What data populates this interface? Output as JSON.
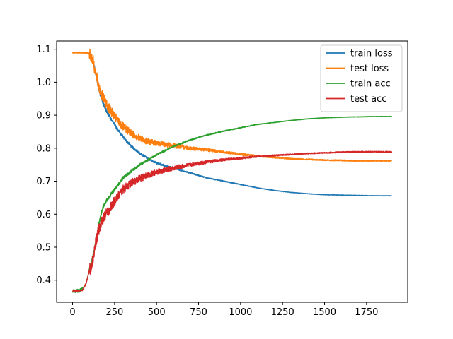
{
  "chart_data": {
    "type": "line",
    "title": "",
    "xlabel": "",
    "ylabel": "",
    "xlim": [
      -95,
      1995
    ],
    "ylim": [
      0.333,
      1.125
    ],
    "x_ticks": [
      0,
      250,
      500,
      750,
      1000,
      1250,
      1500,
      1750
    ],
    "x_tick_labels": [
      "0",
      "250",
      "500",
      "750",
      "1000",
      "1250",
      "1500",
      "1750"
    ],
    "y_ticks": [
      0.4,
      0.5,
      0.6,
      0.7,
      0.8,
      0.9,
      1.0,
      1.1
    ],
    "y_tick_labels": [
      "0.4",
      "0.5",
      "0.6",
      "0.7",
      "0.8",
      "0.9",
      "1.0",
      "1.1"
    ],
    "grid": false,
    "legend": {
      "position": "top-right"
    },
    "noise": [
      0.004,
      0.012,
      0.004,
      0.012
    ],
    "series": [
      {
        "name": "train loss",
        "color": "#1f77b4",
        "x": [
          0,
          50,
          100,
          120,
          140,
          160,
          180,
          200,
          250,
          300,
          350,
          400,
          450,
          500,
          600,
          700,
          800,
          900,
          1000,
          1100,
          1200,
          1300,
          1400,
          1500,
          1600,
          1700,
          1800,
          1900
        ],
        "y": [
          1.09,
          1.09,
          1.088,
          1.07,
          1.02,
          0.97,
          0.94,
          0.915,
          0.87,
          0.835,
          0.805,
          0.785,
          0.768,
          0.755,
          0.74,
          0.725,
          0.71,
          0.7,
          0.69,
          0.68,
          0.672,
          0.666,
          0.662,
          0.659,
          0.658,
          0.657,
          0.656,
          0.656
        ]
      },
      {
        "name": "test loss",
        "color": "#ff7f0e",
        "x": [
          0,
          50,
          100,
          120,
          140,
          160,
          180,
          200,
          250,
          300,
          350,
          400,
          450,
          500,
          600,
          700,
          800,
          900,
          1000,
          1100,
          1200,
          1300,
          1400,
          1500,
          1600,
          1700,
          1800,
          1900
        ],
        "y": [
          1.09,
          1.09,
          1.088,
          1.07,
          1.02,
          0.98,
          0.955,
          0.935,
          0.895,
          0.865,
          0.845,
          0.83,
          0.82,
          0.815,
          0.808,
          0.8,
          0.795,
          0.788,
          0.782,
          0.776,
          0.772,
          0.768,
          0.766,
          0.764,
          0.763,
          0.762,
          0.762,
          0.762
        ]
      },
      {
        "name": "train acc",
        "color": "#2ca02c",
        "x": [
          0,
          40,
          60,
          80,
          100,
          120,
          140,
          160,
          180,
          200,
          250,
          300,
          350,
          400,
          450,
          500,
          600,
          700,
          800,
          900,
          1000,
          1100,
          1200,
          1300,
          1400,
          1500,
          1600,
          1700,
          1800,
          1900
        ],
        "y": [
          0.367,
          0.368,
          0.375,
          0.39,
          0.43,
          0.47,
          0.52,
          0.58,
          0.62,
          0.64,
          0.675,
          0.71,
          0.73,
          0.75,
          0.765,
          0.78,
          0.805,
          0.825,
          0.84,
          0.852,
          0.862,
          0.872,
          0.878,
          0.884,
          0.889,
          0.892,
          0.894,
          0.895,
          0.896,
          0.896
        ]
      },
      {
        "name": "test acc",
        "color": "#d62728",
        "x": [
          0,
          40,
          60,
          80,
          100,
          120,
          140,
          160,
          180,
          200,
          250,
          300,
          350,
          400,
          450,
          500,
          600,
          700,
          800,
          900,
          1000,
          1100,
          1200,
          1300,
          1400,
          1500,
          1600,
          1700,
          1800,
          1900
        ],
        "y": [
          0.367,
          0.368,
          0.37,
          0.39,
          0.43,
          0.46,
          0.52,
          0.56,
          0.585,
          0.6,
          0.64,
          0.675,
          0.695,
          0.708,
          0.718,
          0.728,
          0.74,
          0.75,
          0.758,
          0.765,
          0.77,
          0.775,
          0.778,
          0.781,
          0.784,
          0.786,
          0.788,
          0.789,
          0.789,
          0.789
        ]
      }
    ]
  }
}
